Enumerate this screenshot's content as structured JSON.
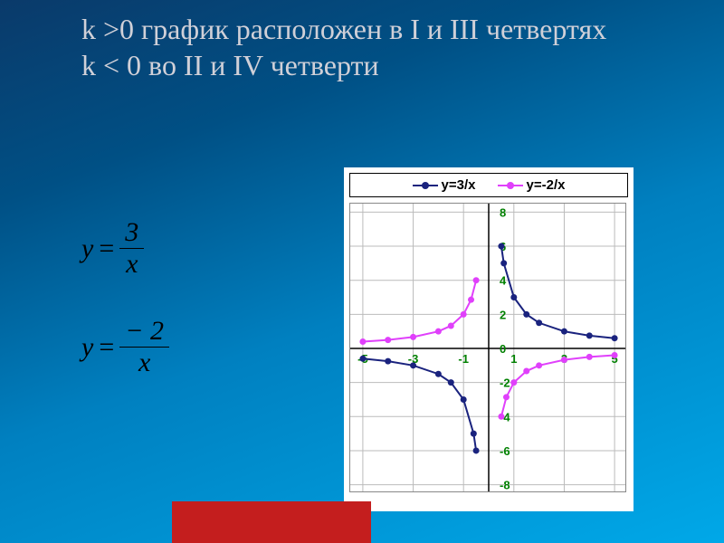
{
  "title_line1": "k >0 график расположен в I и III четвертях",
  "title_line2": "k < 0 во II и IV четверти",
  "formula1": {
    "lhs": "y",
    "num": "3",
    "den": "x"
  },
  "formula2": {
    "lhs": "y",
    "num": "− 2",
    "den": "x"
  },
  "chart": {
    "type": "line",
    "xlim": [
      -5.5,
      5.5
    ],
    "ylim": [
      -8.5,
      8.5
    ],
    "xticks": [
      -5,
      -3,
      -1,
      1,
      3,
      5
    ],
    "yticks": [
      -8,
      -6,
      -4,
      -2,
      0,
      2,
      4,
      6,
      8
    ],
    "grid_color": "#bbbbbb",
    "axis_color": "#000000",
    "tick_label_color": "#008000",
    "tick_fontsize": 13,
    "tick_fontweight": "bold",
    "background_color": "#ffffff",
    "series": [
      {
        "name": "y=3/x",
        "color": "#1a237e",
        "marker": "circle",
        "line_width": 2,
        "branches": [
          {
            "x": [
              -5,
              -4,
              -3,
              -2,
              -1.5,
              -1,
              -0.6,
              -0.5
            ],
            "y": [
              -0.6,
              -0.75,
              -1,
              -1.5,
              -2,
              -3,
              -5,
              -6
            ]
          },
          {
            "x": [
              0.5,
              0.6,
              1,
              1.5,
              2,
              3,
              4,
              5
            ],
            "y": [
              6,
              5,
              3,
              2,
              1.5,
              1,
              0.75,
              0.6
            ]
          }
        ]
      },
      {
        "name": "y=-2/x",
        "color": "#e040fb",
        "marker": "circle",
        "line_width": 2,
        "branches": [
          {
            "x": [
              -5,
              -4,
              -3,
              -2,
              -1.5,
              -1,
              -0.7,
              -0.5
            ],
            "y": [
              0.4,
              0.5,
              0.67,
              1,
              1.33,
              2,
              2.86,
              4
            ]
          },
          {
            "x": [
              0.5,
              0.7,
              1,
              1.5,
              2,
              3,
              4,
              5
            ],
            "y": [
              -4,
              -2.86,
              -2,
              -1.33,
              -1,
              -0.67,
              -0.5,
              -0.4
            ]
          }
        ]
      }
    ],
    "legend": {
      "items": [
        {
          "label": "y=3/x",
          "color": "#1a237e"
        },
        {
          "label": "y=-2/x",
          "color": "#e040fb"
        }
      ]
    }
  }
}
